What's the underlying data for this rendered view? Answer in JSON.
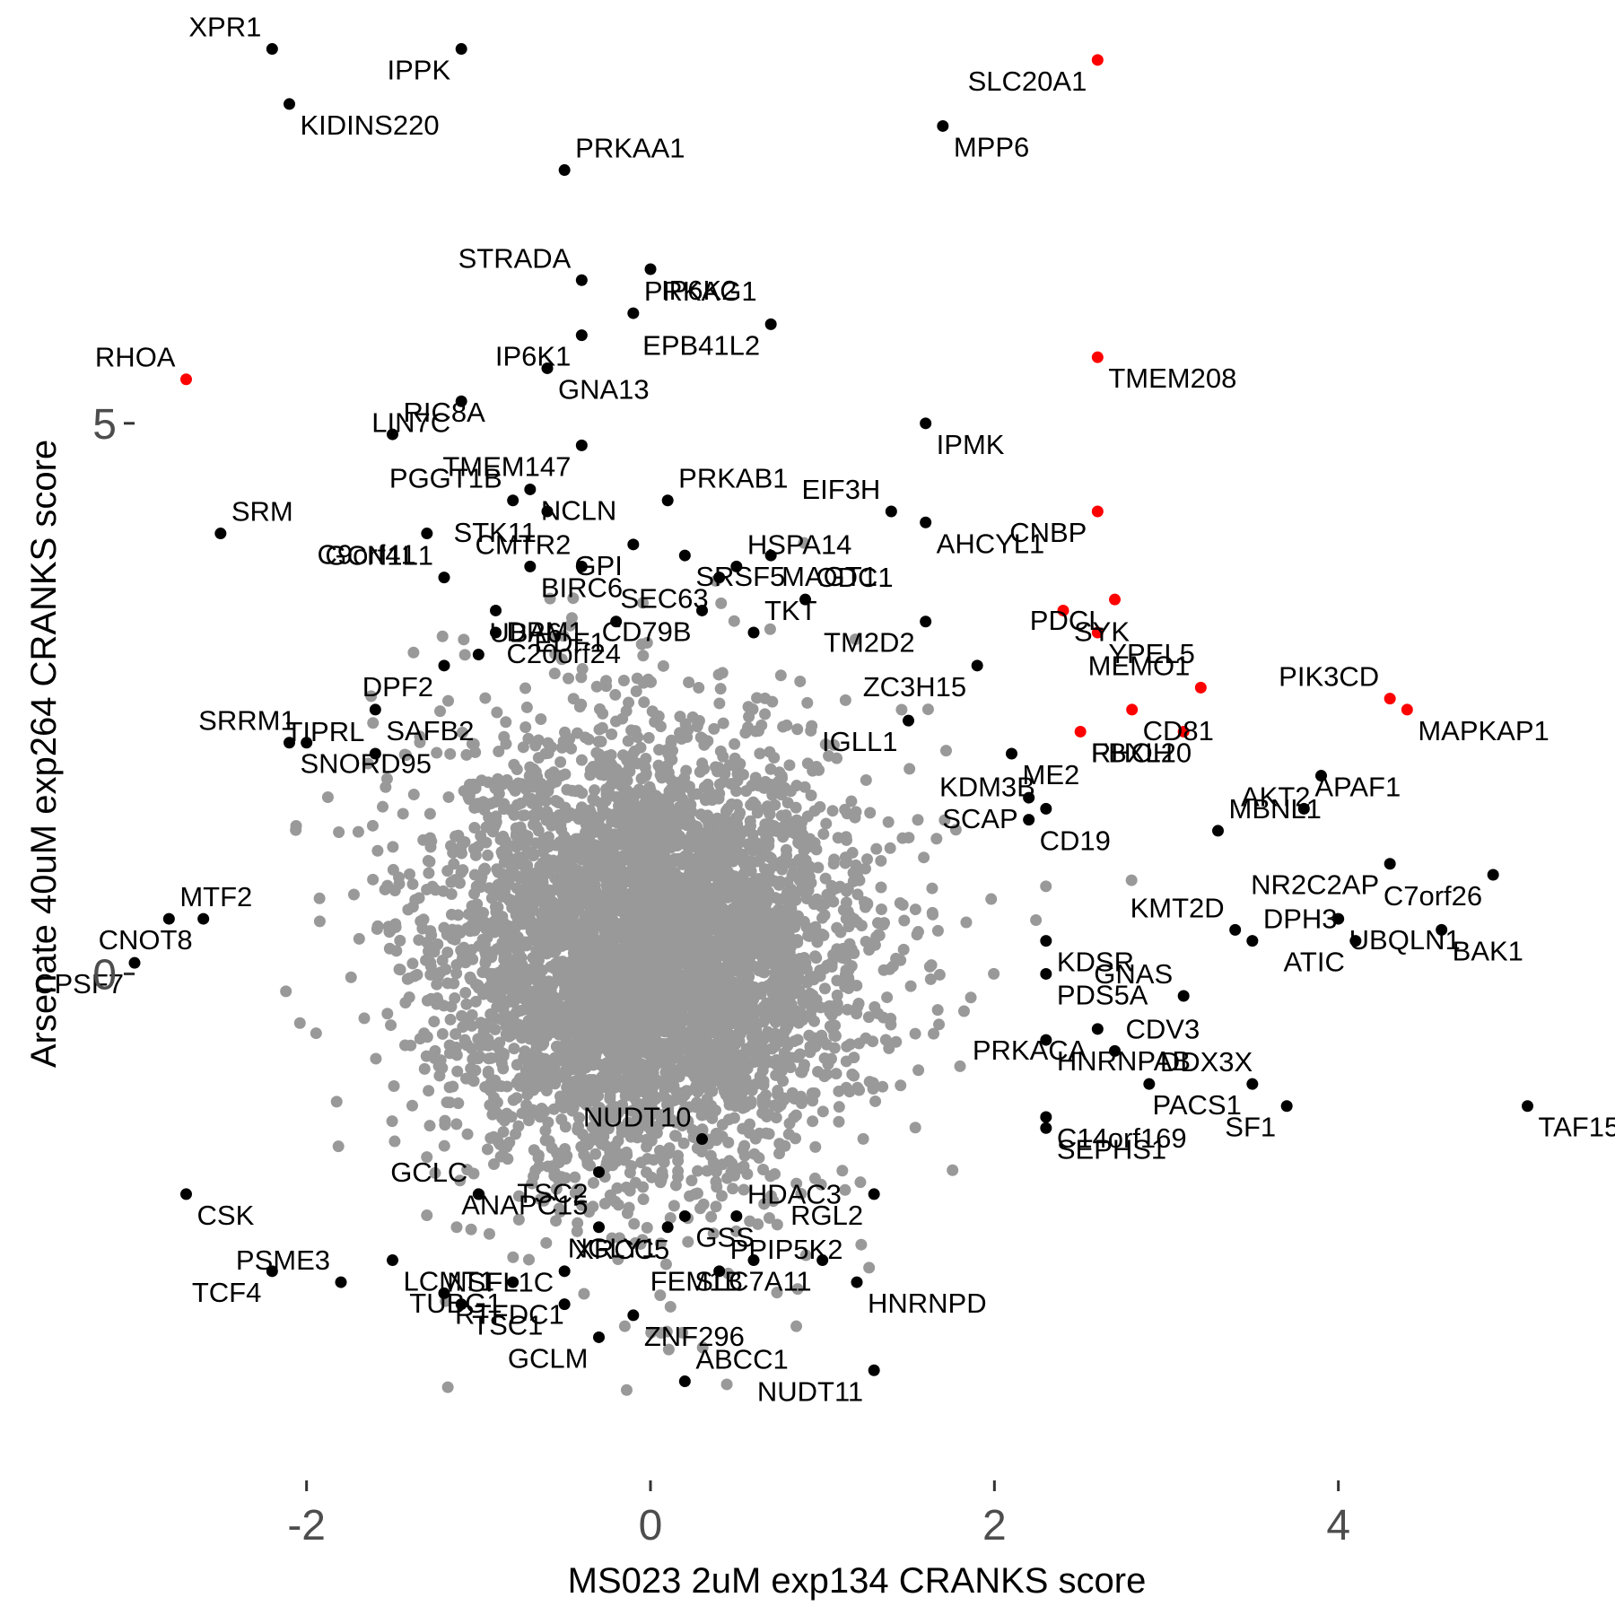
{
  "chart_data": {
    "type": "scatter",
    "title": "",
    "xlabel": "MS023 2uM exp134 CRANKS score",
    "ylabel": "Arsenate 40uM exp264 CRANKS score",
    "xlim": [
      -3.0,
      5.4
    ],
    "ylim": [
      -4.6,
      8.6
    ],
    "x_ticks": [
      {
        "value": -2,
        "label": "-2"
      },
      {
        "value": 0,
        "label": "0"
      },
      {
        "value": 2,
        "label": "2"
      },
      {
        "value": 4,
        "label": "4"
      }
    ],
    "y_ticks": [
      {
        "value": 0,
        "label": "0"
      },
      {
        "value": 5,
        "label": "5"
      }
    ],
    "grid": false,
    "colors": {
      "background_genes": "#999999",
      "labeled_genes": "#000000",
      "highlighted_genes": "#ff0000",
      "text": "#000000",
      "tick_text": "#4d4d4d"
    },
    "background_cloud": {
      "color": "#999999",
      "n_points": 5000,
      "x_center": 0.0,
      "y_center": 0.2,
      "x_sd": 0.5,
      "y_sd": 0.8
    },
    "points": [
      {
        "gene": "XPR1",
        "x": -2.2,
        "y": 8.4,
        "hl": false
      },
      {
        "gene": "KIDINS220",
        "x": -2.1,
        "y": 7.9,
        "hl": false
      },
      {
        "gene": "IPPK",
        "x": -1.1,
        "y": 8.4,
        "hl": false
      },
      {
        "gene": "PRKAA1",
        "x": -0.5,
        "y": 7.3,
        "hl": false
      },
      {
        "gene": "SLC20A1",
        "x": 2.6,
        "y": 8.3,
        "hl": true
      },
      {
        "gene": "MPP6",
        "x": 1.7,
        "y": 7.7,
        "hl": false
      },
      {
        "gene": "STRADA",
        "x": -0.4,
        "y": 6.3,
        "hl": false
      },
      {
        "gene": "IP6K2",
        "x": 0.0,
        "y": 6.4,
        "hl": false
      },
      {
        "gene": "IP6K1",
        "x": -0.4,
        "y": 5.8,
        "hl": false
      },
      {
        "gene": "PRKAG1",
        "x": -0.1,
        "y": 6.0,
        "hl": false
      },
      {
        "gene": "EPB41L2",
        "x": 0.7,
        "y": 5.9,
        "hl": false
      },
      {
        "gene": "TMEM208",
        "x": 2.6,
        "y": 5.6,
        "hl": true
      },
      {
        "gene": "RHOA",
        "x": -2.7,
        "y": 5.4,
        "hl": true
      },
      {
        "gene": "GNA13",
        "x": -0.6,
        "y": 5.5,
        "hl": false
      },
      {
        "gene": "LIN7C",
        "x": -1.1,
        "y": 5.2,
        "hl": false
      },
      {
        "gene": "RIC8A",
        "x": -1.5,
        "y": 4.9,
        "hl": false
      },
      {
        "gene": "TMEM147",
        "x": -0.4,
        "y": 4.8,
        "hl": false
      },
      {
        "gene": "IPMK",
        "x": 1.6,
        "y": 5.0,
        "hl": false
      },
      {
        "gene": "PGGT1B",
        "x": -0.8,
        "y": 4.3,
        "hl": false
      },
      {
        "gene": "NCLN",
        "x": -0.7,
        "y": 4.4,
        "hl": false
      },
      {
        "gene": "STK11",
        "x": -0.6,
        "y": 4.2,
        "hl": false
      },
      {
        "gene": "PRKAB1",
        "x": 0.1,
        "y": 4.3,
        "hl": false
      },
      {
        "gene": "GPI",
        "x": -0.1,
        "y": 3.9,
        "hl": false
      },
      {
        "gene": "SRSF5",
        "x": 0.2,
        "y": 3.8,
        "hl": false
      },
      {
        "gene": "EIF3H",
        "x": 1.4,
        "y": 4.2,
        "hl": false
      },
      {
        "gene": "AHCYL1",
        "x": 1.6,
        "y": 4.1,
        "hl": false
      },
      {
        "gene": "CNBP",
        "x": 2.6,
        "y": 4.2,
        "hl": true
      },
      {
        "gene": "SRM",
        "x": -2.5,
        "y": 4.0,
        "hl": false
      },
      {
        "gene": "C9orf41",
        "x": -1.3,
        "y": 4.0,
        "hl": false
      },
      {
        "gene": "BIRC6",
        "x": -0.7,
        "y": 3.7,
        "hl": false
      },
      {
        "gene": "CMTR2",
        "x": -0.4,
        "y": 3.7,
        "hl": false
      },
      {
        "gene": "MAGT1",
        "x": 0.7,
        "y": 3.8,
        "hl": false
      },
      {
        "gene": "SEC63",
        "x": 0.4,
        "y": 3.6,
        "hl": false
      },
      {
        "gene": "HSPA14",
        "x": 0.5,
        "y": 3.7,
        "hl": false
      },
      {
        "gene": "TM2D2",
        "x": 1.6,
        "y": 3.2,
        "hl": false
      },
      {
        "gene": "SYK",
        "x": 2.4,
        "y": 3.3,
        "hl": true
      },
      {
        "gene": "GCN1L1",
        "x": -1.2,
        "y": 3.6,
        "hl": false
      },
      {
        "gene": "DPM1",
        "x": -0.9,
        "y": 3.3,
        "hl": false
      },
      {
        "gene": "CD79B",
        "x": 0.3,
        "y": 3.3,
        "hl": false
      },
      {
        "gene": "ODC1",
        "x": 0.9,
        "y": 3.4,
        "hl": false
      },
      {
        "gene": "PDCL",
        "x": 2.7,
        "y": 3.4,
        "hl": true
      },
      {
        "gene": "YPEL5",
        "x": 2.6,
        "y": 3.1,
        "hl": true
      },
      {
        "gene": "MEMO1",
        "x": 3.2,
        "y": 2.6,
        "hl": true
      },
      {
        "gene": "C20orf24",
        "x": -0.9,
        "y": 3.1,
        "hl": false
      },
      {
        "gene": "EDF1",
        "x": -0.2,
        "y": 3.2,
        "hl": false
      },
      {
        "gene": "TKT",
        "x": 0.6,
        "y": 3.1,
        "hl": false
      },
      {
        "gene": "ZC3H15",
        "x": 1.9,
        "y": 2.8,
        "hl": false
      },
      {
        "gene": "CD81",
        "x": 2.8,
        "y": 2.4,
        "hl": true
      },
      {
        "gene": "PIK3CD",
        "x": 4.3,
        "y": 2.5,
        "hl": true
      },
      {
        "gene": "MAPKAP1",
        "x": 4.4,
        "y": 2.4,
        "hl": true
      },
      {
        "gene": "DPF2",
        "x": -1.2,
        "y": 2.8,
        "hl": false
      },
      {
        "gene": "UBA6",
        "x": -1.0,
        "y": 2.9,
        "hl": false
      },
      {
        "gene": "RHOH",
        "x": 3.1,
        "y": 2.2,
        "hl": true
      },
      {
        "gene": "FBXL20",
        "x": 2.5,
        "y": 2.2,
        "hl": true
      },
      {
        "gene": "SRRM1",
        "x": -2.0,
        "y": 2.1,
        "hl": false
      },
      {
        "gene": "SAFB2",
        "x": -1.6,
        "y": 2.4,
        "hl": false
      },
      {
        "gene": "IGLL1",
        "x": 1.5,
        "y": 2.3,
        "hl": false
      },
      {
        "gene": "APAF1",
        "x": 3.8,
        "y": 1.5,
        "hl": false
      },
      {
        "gene": "AKT2",
        "x": 3.9,
        "y": 1.8,
        "hl": false
      },
      {
        "gene": "SNORD95",
        "x": -2.1,
        "y": 2.1,
        "hl": false
      },
      {
        "gene": "TIPRL",
        "x": -1.6,
        "y": 2.0,
        "hl": false
      },
      {
        "gene": "ME2",
        "x": 2.1,
        "y": 2.0,
        "hl": false
      },
      {
        "gene": "SCAP",
        "x": 2.2,
        "y": 1.6,
        "hl": false
      },
      {
        "gene": "MBNL1",
        "x": 3.3,
        "y": 1.3,
        "hl": false
      },
      {
        "gene": "NR2C2AP",
        "x": 4.3,
        "y": 1.0,
        "hl": false
      },
      {
        "gene": "CD19",
        "x": 2.2,
        "y": 1.4,
        "hl": false
      },
      {
        "gene": "KDM3B",
        "x": 2.3,
        "y": 1.5,
        "hl": false
      },
      {
        "gene": "UBQLN1",
        "x": 4.0,
        "y": 0.5,
        "hl": false
      },
      {
        "gene": "C7orf26",
        "x": 4.9,
        "y": 0.9,
        "hl": false
      },
      {
        "gene": "MTF2",
        "x": -2.8,
        "y": 0.5,
        "hl": false
      },
      {
        "gene": "CNOT8",
        "x": -2.6,
        "y": 0.5,
        "hl": false
      },
      {
        "gene": "KDSR",
        "x": 2.3,
        "y": 0.3,
        "hl": false
      },
      {
        "gene": "KMT2D",
        "x": 3.4,
        "y": 0.4,
        "hl": false
      },
      {
        "gene": "BAK1",
        "x": 4.6,
        "y": 0.4,
        "hl": false
      },
      {
        "gene": "CPSF7",
        "x": -3.0,
        "y": 0.1,
        "hl": false
      },
      {
        "gene": "DPH3",
        "x": 3.5,
        "y": 0.3,
        "hl": false
      },
      {
        "gene": "ATIC",
        "x": 4.1,
        "y": 0.3,
        "hl": false
      },
      {
        "gene": "PDS5A",
        "x": 2.3,
        "y": 0.0,
        "hl": false
      },
      {
        "gene": "GNAS",
        "x": 3.1,
        "y": -0.2,
        "hl": false
      },
      {
        "gene": "HNRNPAB",
        "x": 2.3,
        "y": -0.6,
        "hl": false
      },
      {
        "gene": "PRKACA",
        "x": 2.6,
        "y": -0.5,
        "hl": false
      },
      {
        "gene": "CDV3",
        "x": 2.7,
        "y": -0.7,
        "hl": false
      },
      {
        "gene": "PACS1",
        "x": 3.5,
        "y": -1.0,
        "hl": false
      },
      {
        "gene": "TAF15",
        "x": 5.1,
        "y": -1.2,
        "hl": false
      },
      {
        "gene": "NUDT10",
        "x": 0.3,
        "y": -1.5,
        "hl": false
      },
      {
        "gene": "C14orf169",
        "x": 2.3,
        "y": -1.3,
        "hl": false
      },
      {
        "gene": "SF1",
        "x": 3.7,
        "y": -1.2,
        "hl": false
      },
      {
        "gene": "DDX3X",
        "x": 2.9,
        "y": -1.0,
        "hl": false
      },
      {
        "gene": "TSC2",
        "x": -0.3,
        "y": -1.8,
        "hl": false
      },
      {
        "gene": "GSS",
        "x": 0.2,
        "y": -2.2,
        "hl": false
      },
      {
        "gene": "GCLC",
        "x": -1.0,
        "y": -2.0,
        "hl": false
      },
      {
        "gene": "CSK",
        "x": -2.7,
        "y": -2.0,
        "hl": false
      },
      {
        "gene": "NGLY1",
        "x": 0.1,
        "y": -2.3,
        "hl": false
      },
      {
        "gene": "HDAC3",
        "x": 0.5,
        "y": -2.2,
        "hl": false
      },
      {
        "gene": "RGL2",
        "x": 1.3,
        "y": -2.0,
        "hl": false
      },
      {
        "gene": "SEPHS1",
        "x": 2.3,
        "y": -1.4,
        "hl": false
      },
      {
        "gene": "ANAPC15",
        "x": -0.3,
        "y": -2.3,
        "hl": false
      },
      {
        "gene": "LCMT1",
        "x": -1.5,
        "y": -2.6,
        "hl": false
      },
      {
        "gene": "TCF4",
        "x": -2.2,
        "y": -2.7,
        "hl": false
      },
      {
        "gene": "XRCC5",
        "x": -0.5,
        "y": -2.7,
        "hl": false
      },
      {
        "gene": "FEM1B",
        "x": 0.6,
        "y": -2.6,
        "hl": false
      },
      {
        "gene": "HNRNPD",
        "x": 1.2,
        "y": -2.8,
        "hl": false
      },
      {
        "gene": "PSME3",
        "x": -1.8,
        "y": -2.8,
        "hl": false
      },
      {
        "gene": "RTFDC1",
        "x": -1.2,
        "y": -2.9,
        "hl": false
      },
      {
        "gene": "TUBG1",
        "x": -0.8,
        "y": -2.8,
        "hl": false
      },
      {
        "gene": "PPIP5K2",
        "x": 0.4,
        "y": -2.7,
        "hl": false
      },
      {
        "gene": "SLC7A11",
        "x": 1.0,
        "y": -2.6,
        "hl": false
      },
      {
        "gene": "TSC1",
        "x": -1.1,
        "y": -3.0,
        "hl": false
      },
      {
        "gene": "NSFL1C",
        "x": -0.5,
        "y": -3.0,
        "hl": false
      },
      {
        "gene": "ZNF296",
        "x": -0.1,
        "y": -3.1,
        "hl": false
      },
      {
        "gene": "GCLM",
        "x": -0.3,
        "y": -3.3,
        "hl": false
      },
      {
        "gene": "ABCC1",
        "x": 0.2,
        "y": -3.7,
        "hl": false
      },
      {
        "gene": "NUDT11",
        "x": 1.3,
        "y": -3.6,
        "hl": false
      }
    ]
  }
}
